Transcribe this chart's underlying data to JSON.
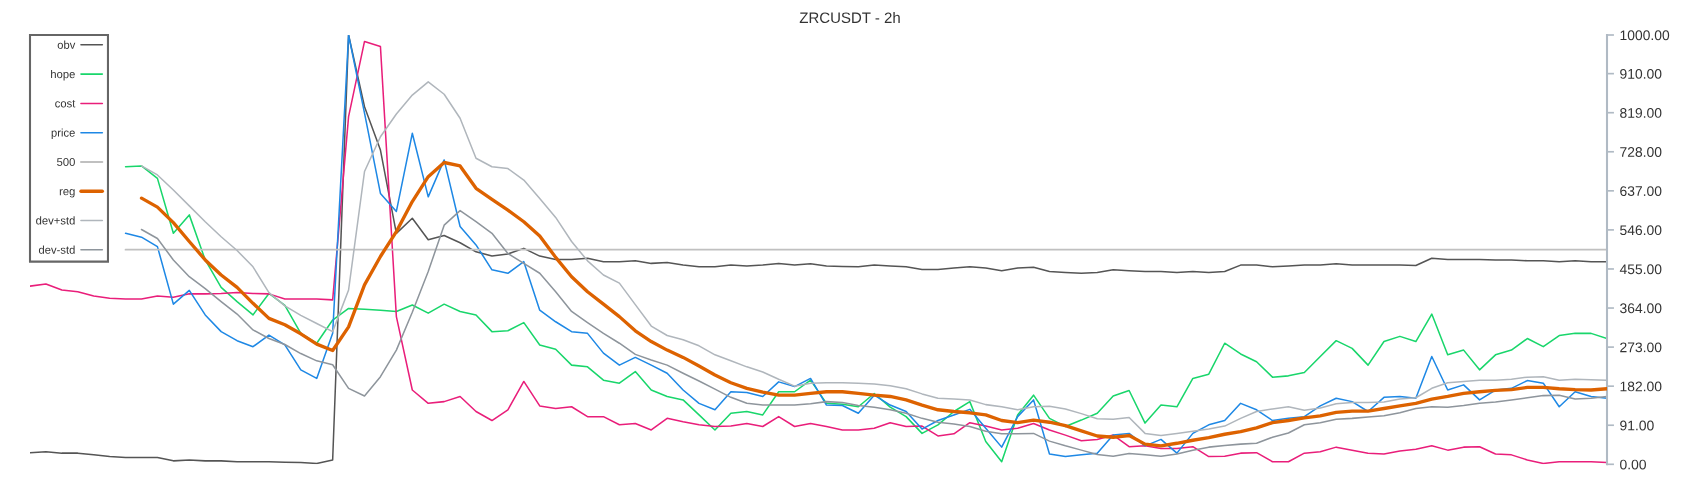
{
  "chart_data": {
    "type": "line",
    "title": "ZRCUSDT - 2h",
    "categories": [
      null,
      null,
      null,
      null,
      null,
      null,
      null,
      null,
      null,
      null,
      null,
      null,
      null,
      null,
      null,
      null,
      null,
      null,
      null,
      null,
      null,
      null,
      null,
      null,
      null,
      null,
      null,
      null,
      null,
      null,
      null,
      null,
      null,
      null,
      null,
      null,
      null,
      null,
      null,
      null,
      null,
      null,
      null,
      null,
      null,
      null,
      null,
      null,
      null,
      null,
      null,
      null,
      null,
      null,
      null,
      null,
      null,
      null,
      null,
      null,
      null,
      null,
      null,
      null,
      null,
      null,
      null,
      null,
      null,
      null,
      null,
      null,
      null,
      null,
      null,
      null,
      null,
      null,
      null,
      null,
      null,
      null,
      null,
      null,
      null,
      null,
      null,
      null,
      null,
      null,
      null,
      null,
      null,
      null,
      null,
      null,
      null,
      null,
      null,
      null
    ],
    "series": [
      {
        "name": "obv",
        "color": "#555555",
        "values": [
          27,
          29,
          26,
          26,
          22,
          18,
          16,
          16,
          16,
          8,
          10,
          8,
          8,
          6,
          6,
          6,
          5,
          4,
          2,
          10,
          1000,
          833,
          732,
          538,
          573,
          523,
          533,
          516,
          495,
          485,
          490,
          503,
          485,
          477,
          477,
          480,
          472,
          472,
          474,
          468,
          470,
          464,
          460,
          460,
          464,
          462,
          464,
          468,
          464,
          467,
          462,
          461,
          460,
          464,
          462,
          460,
          454,
          454,
          457,
          460,
          457,
          451,
          457,
          459,
          449,
          447,
          445,
          447,
          453,
          451,
          449,
          449,
          447,
          449,
          447,
          449,
          464,
          464,
          460,
          462,
          464,
          464,
          467,
          464,
          464,
          464,
          464,
          463,
          480,
          477,
          477,
          477,
          476,
          476,
          474,
          474,
          472,
          474,
          472,
          472
        ]
      },
      {
        "name": "hope",
        "color": "#19d66b",
        "values": [
          null,
          null,
          null,
          null,
          null,
          null,
          693,
          695,
          666,
          538,
          581,
          476,
          412,
          379,
          348,
          398,
          370,
          305,
          282,
          336,
          363,
          361,
          359,
          356,
          371,
          352,
          373,
          356,
          348,
          309,
          311,
          330,
          278,
          268,
          231,
          227,
          196,
          189,
          216,
          173,
          158,
          150,
          115,
          80,
          119,
          123,
          115,
          169,
          169,
          196,
          142,
          140,
          134,
          165,
          133,
          111,
          72,
          92,
          123,
          146,
          53,
          6,
          115,
          161,
          107,
          88,
          103,
          119,
          159,
          172,
          96,
          138,
          134,
          200,
          210,
          282,
          257,
          239,
          203,
          206,
          214,
          251,
          288,
          270,
          231,
          286,
          298,
          286,
          350,
          255,
          266,
          220,
          255,
          266,
          293,
          274,
          300,
          305,
          305,
          293
        ]
      },
      {
        "name": "cost",
        "color": "#e91e7a",
        "values": [
          415,
          420,
          406,
          402,
          392,
          387,
          385,
          385,
          392,
          389,
          397,
          397,
          398,
          400,
          398,
          397,
          385,
          385,
          385,
          383,
          810,
          985,
          973,
          344,
          173,
          142,
          146,
          158,
          123,
          102,
          127,
          193,
          136,
          130,
          134,
          111,
          111,
          92,
          95,
          80,
          107,
          99,
          92,
          88,
          89,
          95,
          88,
          111,
          88,
          95,
          88,
          80,
          80,
          84,
          97,
          88,
          89,
          66,
          71,
          97,
          89,
          80,
          84,
          95,
          80,
          68,
          55,
          58,
          68,
          41,
          43,
          37,
          37,
          41,
          18,
          19,
          26,
          27,
          6,
          6,
          26,
          29,
          40,
          33,
          26,
          24,
          31,
          35,
          43,
          33,
          40,
          41,
          24,
          22,
          10,
          2,
          6,
          6,
          6,
          4
        ]
      },
      {
        "name": "price",
        "color": "#1e88e5",
        "values": [
          null,
          null,
          null,
          null,
          null,
          null,
          538,
          529,
          507,
          373,
          405,
          348,
          309,
          288,
          274,
          301,
          278,
          220,
          200,
          305,
          1000,
          818,
          631,
          589,
          771,
          623,
          709,
          554,
          511,
          453,
          445,
          472,
          359,
          332,
          309,
          305,
          259,
          231,
          249,
          231,
          212,
          173,
          142,
          127,
          169,
          167,
          158,
          192,
          181,
          200,
          138,
          137,
          119,
          161,
          138,
          123,
          82,
          102,
          115,
          128,
          84,
          40,
          111,
          150,
          24,
          18,
          22,
          26,
          68,
          72,
          43,
          58,
          26,
          72,
          92,
          102,
          142,
          127,
          102,
          107,
          111,
          136,
          154,
          146,
          123,
          156,
          158,
          154,
          251,
          173,
          185,
          150,
          173,
          177,
          195,
          189,
          134,
          169,
          158,
          154
        ]
      },
      {
        "name": "500",
        "color": "#c0c0c0",
        "values": [
          null,
          null,
          null,
          null,
          null,
          null,
          500,
          500,
          500,
          500,
          500,
          500,
          500,
          500,
          500,
          500,
          500,
          500,
          500,
          500,
          500,
          500,
          500,
          500,
          500,
          500,
          500,
          500,
          500,
          500,
          500,
          500,
          500,
          500,
          500,
          500,
          500,
          500,
          500,
          500,
          500,
          500,
          500,
          500,
          500,
          500,
          500,
          500,
          500,
          500,
          500,
          500,
          500,
          500,
          500,
          500,
          500,
          500,
          500,
          500,
          500,
          500,
          500,
          500,
          500,
          500,
          500,
          500,
          500,
          500,
          500,
          500,
          500,
          500,
          500,
          500,
          500,
          500,
          500,
          500,
          500,
          500,
          500,
          500,
          500,
          500,
          500,
          500,
          500,
          500,
          500,
          500,
          500,
          500,
          500,
          500,
          500,
          500,
          500,
          500
        ]
      },
      {
        "name": "reg",
        "color": "#dd6200",
        "values": [
          null,
          null,
          null,
          null,
          null,
          null,
          null,
          620,
          599,
          563,
          519,
          476,
          441,
          412,
          375,
          340,
          325,
          304,
          280,
          265,
          320,
          418,
          484,
          542,
          612,
          670,
          703,
          695,
          643,
          617,
          592,
          565,
          532,
          482,
          437,
          402,
          373,
          344,
          311,
          286,
          266,
          249,
          229,
          208,
          190,
          177,
          168,
          161,
          161,
          165,
          169,
          169,
          165,
          161,
          158,
          150,
          138,
          127,
          123,
          120,
          115,
          102,
          97,
          103,
          98,
          90,
          78,
          66,
          63,
          67,
          47,
          43,
          49,
          56,
          62,
          70,
          76,
          85,
          97,
          102,
          108,
          113,
          121,
          124,
          124,
          130,
          136,
          142,
          152,
          158,
          165,
          169,
          172,
          174,
          179,
          179,
          176,
          174,
          173,
          176
        ]
      },
      {
        "name": "dev+std",
        "color": "#b0b6bc",
        "values": [
          null,
          null,
          null,
          null,
          null,
          null,
          null,
          695,
          674,
          639,
          602,
          565,
          530,
          498,
          460,
          400,
          369,
          347,
          328,
          309,
          406,
          682,
          763,
          816,
          860,
          891,
          862,
          806,
          713,
          693,
          689,
          662,
          619,
          575,
          519,
          474,
          441,
          422,
          372,
          322,
          300,
          290,
          276,
          255,
          241,
          227,
          215,
          198,
          182,
          189,
          190,
          190,
          189,
          187,
          183,
          176,
          164,
          154,
          152,
          150,
          139,
          134,
          127,
          134,
          135,
          129,
          118,
          106,
          105,
          109,
          72,
          67,
          72,
          77,
          82,
          89,
          107,
          123,
          129,
          134,
          126,
          131,
          141,
          144,
          144,
          145,
          152,
          155,
          177,
          190,
          193,
          196,
          196,
          198,
          203,
          204,
          196,
          198,
          197,
          196
        ]
      },
      {
        "name": "dev-std",
        "color": "#8e959c",
        "values": [
          null,
          null,
          null,
          null,
          null,
          null,
          null,
          547,
          526,
          476,
          437,
          409,
          379,
          350,
          313,
          293,
          279,
          258,
          241,
          232,
          177,
          159,
          204,
          266,
          354,
          449,
          557,
          591,
          565,
          538,
          491,
          468,
          445,
          402,
          356,
          330,
          305,
          282,
          256,
          243,
          231,
          212,
          194,
          175,
          156,
          142,
          138,
          138,
          138,
          141,
          146,
          144,
          137,
          133,
          127,
          119,
          107,
          98,
          94,
          88,
          77,
          71,
          71,
          72,
          54,
          43,
          33,
          23,
          19,
          25,
          22,
          19,
          24,
          33,
          40,
          44,
          47,
          49,
          63,
          73,
          92,
          97,
          105,
          107,
          110,
          113,
          120,
          130,
          134,
          133,
          137,
          142,
          145,
          150,
          155,
          160,
          161,
          152,
          154,
          158
        ]
      }
    ],
    "ylim": [
      0,
      1000
    ],
    "yticks": [
      {
        "value": 0,
        "label": "0.00"
      },
      {
        "value": 91,
        "label": "91.00"
      },
      {
        "value": 182,
        "label": "182.00"
      },
      {
        "value": 273,
        "label": "273.00"
      },
      {
        "value": 364,
        "label": "364.00"
      },
      {
        "value": 455,
        "label": "455.00"
      },
      {
        "value": 546,
        "label": "546.00"
      },
      {
        "value": 637,
        "label": "637.00"
      },
      {
        "value": 728,
        "label": "728.00"
      },
      {
        "value": 819,
        "label": "819.00"
      },
      {
        "value": 910,
        "label": "910.00"
      },
      {
        "value": 1000,
        "label": "1000.00"
      }
    ],
    "legend": "top left",
    "tick_labels": "y"
  }
}
